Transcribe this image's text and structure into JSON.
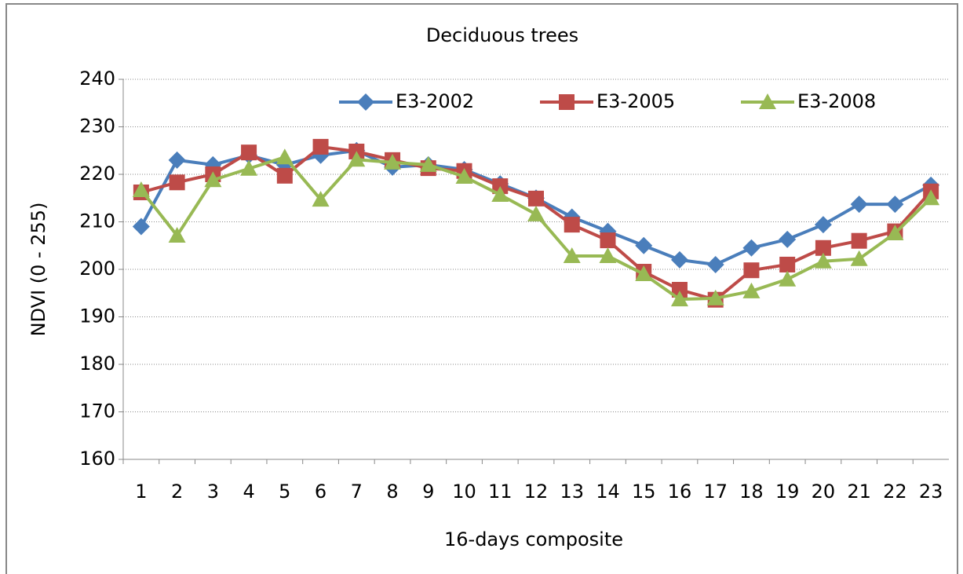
{
  "chart_data": {
    "type": "line",
    "title": "Deciduous trees",
    "x_label": "16-days composite",
    "y_label": "NDVI (0 - 255)",
    "categories": [
      "1",
      "2",
      "3",
      "4",
      "5",
      "6",
      "7",
      "8",
      "9",
      "10",
      "11",
      "12",
      "13",
      "14",
      "15",
      "16",
      "17",
      "18",
      "19",
      "20",
      "21",
      "22",
      "23"
    ],
    "series": [
      {
        "name": "E3-2002",
        "color": "#4a7ebb",
        "marker": "diamond",
        "values": [
          209,
          223,
          222,
          224,
          222,
          224,
          225,
          221.5,
          222,
          221,
          218,
          215,
          211,
          208,
          205,
          202,
          201,
          204.5,
          206.3,
          209.4,
          213.7,
          213.7,
          217.7
        ]
      },
      {
        "name": "E3-2005",
        "color": "#be4b48",
        "marker": "square",
        "values": [
          216.2,
          218.3,
          220,
          224.6,
          219.7,
          225.8,
          224.8,
          223,
          221.3,
          220.7,
          217.5,
          214.9,
          209.4,
          206.1,
          199.5,
          195.7,
          193.6,
          199.8,
          201,
          204.5,
          206,
          208,
          216.4
        ]
      },
      {
        "name": "E3-2008",
        "color": "#98b954",
        "marker": "triangle",
        "values": [
          216.7,
          207.1,
          218.8,
          221.2,
          223.6,
          214.7,
          223.1,
          222.5,
          222,
          219.5,
          215.7,
          211.6,
          202.8,
          202.8,
          199,
          193.7,
          193.9,
          195.4,
          197.9,
          201.7,
          202.2,
          207.6,
          215
        ]
      }
    ],
    "ylim": [
      160,
      240
    ],
    "yticks": [
      160,
      170,
      180,
      190,
      200,
      210,
      220,
      230,
      240
    ],
    "grid": true,
    "legend": "top"
  }
}
